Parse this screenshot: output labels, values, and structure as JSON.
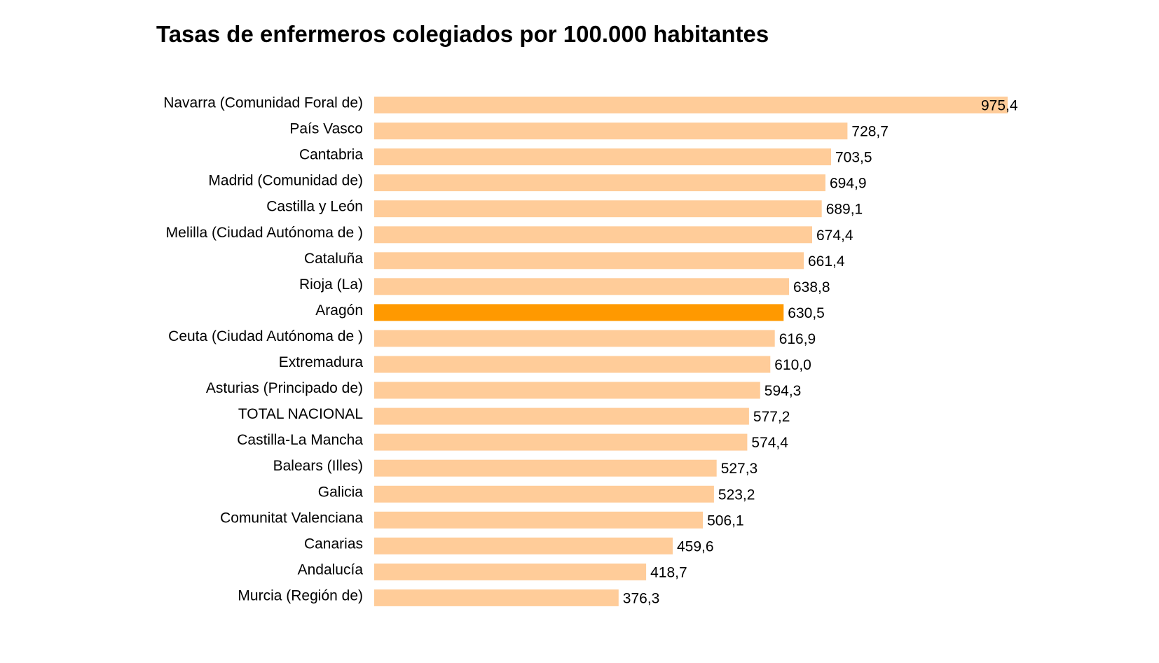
{
  "chart_data": {
    "type": "bar",
    "orientation": "horizontal",
    "title": "Tasas de enfermeros colegiados por 100.000 habitantes",
    "xlabel": "",
    "ylabel": "",
    "grid": false,
    "legend": "none",
    "xlim": [
      0,
      975.4
    ],
    "colors": {
      "default": "#FFCC99",
      "highlight": "#FF9900"
    },
    "highlight_category": "Aragón",
    "categories": [
      "Navarra (Comunidad Foral de)",
      "País Vasco",
      "Cantabria",
      "Madrid (Comunidad de)",
      "Castilla y León",
      "Melilla (Ciudad Autónoma de )",
      "Cataluña",
      "Rioja (La)",
      "Aragón",
      "Ceuta (Ciudad Autónoma de )",
      "Extremadura",
      "Asturias (Principado de)",
      "TOTAL NACIONAL",
      "Castilla-La Mancha",
      "Balears (Illes)",
      "Galicia",
      "Comunitat Valenciana",
      "Canarias",
      "Andalucía",
      "Murcia (Región de)"
    ],
    "values": [
      975.4,
      728.7,
      703.5,
      694.9,
      689.1,
      674.4,
      661.4,
      638.8,
      630.5,
      616.9,
      610.0,
      594.3,
      577.2,
      574.4,
      527.3,
      523.2,
      506.1,
      459.6,
      418.7,
      376.3
    ],
    "value_labels": [
      "975,4",
      "728,7",
      "703,5",
      "694,9",
      "689,1",
      "674,4",
      "661,4",
      "638,8",
      "630,5",
      "616,9",
      "610,0",
      "594,3",
      "577,2",
      "574,4",
      "527,3",
      "523,2",
      "506,1",
      "459,6",
      "418,7",
      "376,3"
    ]
  }
}
